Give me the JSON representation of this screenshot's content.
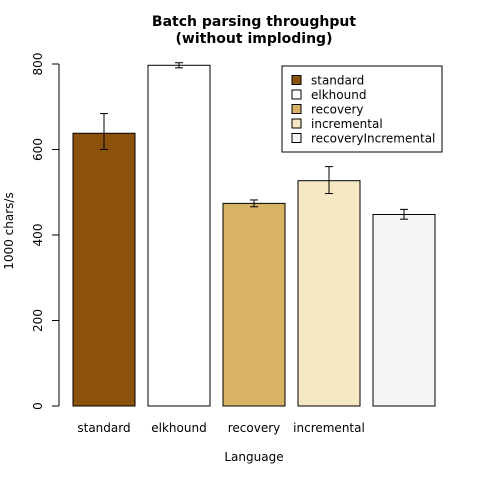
{
  "chart_data": {
    "type": "bar",
    "title": "Batch parsing throughput",
    "subtitle": "(without imploding)",
    "xlabel": "Language",
    "ylabel": "1000 chars/s",
    "ylim": [
      0,
      800
    ],
    "yticks": [
      "0",
      "200",
      "400",
      "600",
      "800"
    ],
    "legend_position": "top-right",
    "categories": [
      "standard",
      "elkhound",
      "recovery",
      "incremental",
      "recoveryIncremental"
    ],
    "category_labels_shown": [
      "standard",
      "elkhound",
      "recovery",
      "incremental",
      ""
    ],
    "values": [
      638,
      797,
      474,
      527,
      448
    ],
    "error_low": [
      600,
      791,
      466,
      497,
      437
    ],
    "error_high": [
      684,
      803,
      482,
      560,
      460
    ],
    "colors": [
      "#8c510a",
      "#ffffff",
      "#d8b365",
      "#f6e8c3",
      "#f5f5f5"
    ],
    "legend": [
      "standard",
      "elkhound",
      "recovery",
      "incremental",
      "recoveryIncremental"
    ]
  }
}
